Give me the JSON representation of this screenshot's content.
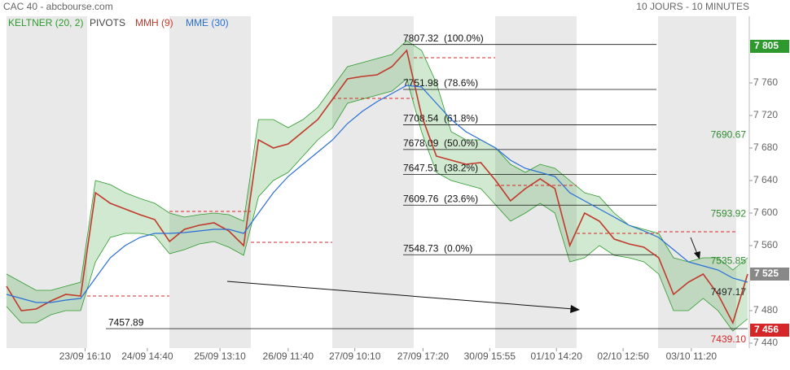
{
  "chart_data": {
    "type": "line",
    "title": "CAC 40 - abcbourse.com",
    "subtitle": "10 JOURS - 10 MINUTES",
    "xlim": [
      0,
      50
    ],
    "ylim": [
      7434,
      7834
    ],
    "xticks": [
      {
        "value": 5.3,
        "label": "23/09 16:10"
      },
      {
        "value": 9.5,
        "label": "24/09 14:40"
      },
      {
        "value": 14.4,
        "label": "25/09 13:10"
      },
      {
        "value": 19,
        "label": "26/09 11:40"
      },
      {
        "value": 23.5,
        "label": "27/09 10:10"
      },
      {
        "value": 28.1,
        "label": "27/09 17:20"
      },
      {
        "value": 32.6,
        "label": "30/09 15:55"
      },
      {
        "value": 37.1,
        "label": "01/10 14:20"
      },
      {
        "value": 41.6,
        "label": "02/10 12:50"
      },
      {
        "value": 46.2,
        "label": "03/10 11:20"
      }
    ],
    "yticks": [
      {
        "value": 7440,
        "label": "7 440"
      },
      {
        "value": 7480,
        "label": "7 480"
      },
      {
        "value": 7560,
        "label": "7 560"
      },
      {
        "value": 7600,
        "label": "7 600"
      },
      {
        "value": 7640,
        "label": "7 640"
      },
      {
        "value": 7680,
        "label": "7 680"
      },
      {
        "value": 7720,
        "label": "7 720"
      },
      {
        "value": 7760,
        "label": "7 760"
      }
    ],
    "keltner": {
      "name": "KELTNER (20, 2)",
      "color": "#2e9a2e",
      "upper": [
        7525,
        7515,
        7505,
        7505,
        7510,
        7515,
        7640,
        7635,
        7625,
        7618,
        7612,
        7600,
        7595,
        7598,
        7600,
        7598,
        7590,
        7715,
        7715,
        7705,
        7715,
        7730,
        7755,
        7780,
        7785,
        7790,
        7795,
        7812,
        7800,
        7760,
        7700,
        7690,
        7690,
        7680,
        7660,
        7650,
        7660,
        7655,
        7640,
        7625,
        7620,
        7600,
        7585,
        7580,
        7575,
        7545,
        7540,
        7545,
        7545,
        7530,
        7545
      ],
      "lower": [
        7485,
        7465,
        7465,
        7475,
        7480,
        7480,
        7540,
        7570,
        7575,
        7575,
        7572,
        7550,
        7555,
        7562,
        7565,
        7558,
        7548,
        7620,
        7640,
        7650,
        7670,
        7690,
        7705,
        7735,
        7740,
        7745,
        7750,
        7765,
        7700,
        7650,
        7640,
        7635,
        7630,
        7610,
        7590,
        7600,
        7612,
        7600,
        7540,
        7545,
        7560,
        7548,
        7545,
        7540,
        7525,
        7480,
        7480,
        7495,
        7480,
        7455,
        7470
      ]
    },
    "series": [
      {
        "name": "MMH (9)",
        "color": "#c0392b",
        "values": [
          7510,
          7480,
          7482,
          7492,
          7500,
          7498,
          7625,
          7612,
          7605,
          7598,
          7592,
          7565,
          7580,
          7585,
          7588,
          7578,
          7560,
          7690,
          7680,
          7685,
          7700,
          7715,
          7740,
          7765,
          7768,
          7770,
          7780,
          7800,
          7720,
          7670,
          7665,
          7660,
          7662,
          7640,
          7615,
          7630,
          7642,
          7630,
          7560,
          7600,
          7590,
          7568,
          7562,
          7558,
          7545,
          7500,
          7515,
          7525,
          7500,
          7465,
          7525
        ]
      },
      {
        "name": "MME (30)",
        "color": "#2a6fd6",
        "values": [
          7500,
          7495,
          7490,
          7490,
          7493,
          7495,
          7520,
          7545,
          7560,
          7570,
          7575,
          7575,
          7576,
          7578,
          7580,
          7580,
          7575,
          7600,
          7625,
          7645,
          7660,
          7675,
          7690,
          7710,
          7725,
          7737,
          7747,
          7757,
          7755,
          7735,
          7715,
          7700,
          7690,
          7680,
          7665,
          7655,
          7650,
          7645,
          7625,
          7615,
          7605,
          7595,
          7585,
          7578,
          7570,
          7555,
          7540,
          7535,
          7530,
          7520,
          7515
        ]
      }
    ],
    "pivots": {
      "name": "PIVOTS",
      "color": "#d62728",
      "values": [
        null,
        7498,
        7602,
        7564,
        7741,
        7791,
        7634,
        7575,
        7577
      ]
    },
    "fibonacci": [
      {
        "value": 7807.32,
        "label": "7807.32  (100.0%)"
      },
      {
        "value": 7751.98,
        "label": "7751.98  (78.6%)"
      },
      {
        "value": 7708.54,
        "label": "7708.54  (61.8%)"
      },
      {
        "value": 7678.09,
        "label": "7678.09  (50.0%)"
      },
      {
        "value": 7647.51,
        "label": "7647.51  (38.2%)"
      },
      {
        "value": 7609.76,
        "label": "7609.76  (23.6%)"
      },
      {
        "value": 7548.73,
        "label": "7548.73  (0.0%)"
      }
    ],
    "support": {
      "value": 7457.89,
      "label": "7457.89"
    },
    "levels": [
      {
        "value": 7690.67,
        "label": "7690.67",
        "color": "#2e8b2e"
      },
      {
        "value": 7593.92,
        "label": "7593.92",
        "color": "#2e8b2e"
      },
      {
        "value": 7535.85,
        "label": "7535.85",
        "color": "#2e8b2e"
      },
      {
        "value": 7497.17,
        "label": "7497.17",
        "color": "#222222"
      },
      {
        "value": 7439.1,
        "label": "7439.10",
        "color": "#d62728"
      }
    ],
    "axis_markers": [
      {
        "value": 7805,
        "label": "7 805",
        "color": "#2e9a2e"
      },
      {
        "value": 7525,
        "label": "7 525",
        "color": "#888888"
      },
      {
        "value": 7456,
        "label": "7 456",
        "color": "#d62728"
      }
    ]
  }
}
